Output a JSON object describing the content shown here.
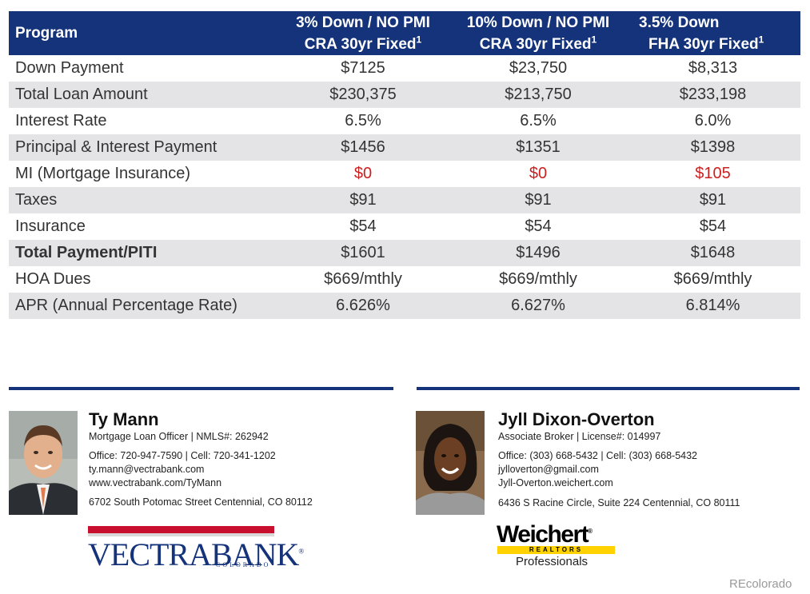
{
  "table": {
    "headers": {
      "program": "Program",
      "columns": [
        {
          "line1": "3% Down / NO PMI",
          "line2": "CRA 30yr Fixed",
          "sup": "1"
        },
        {
          "line1": "10% Down / NO PMI",
          "line2": "CRA 30yr Fixed",
          "sup": "1"
        },
        {
          "line1": "3.5% Down",
          "line2": "FHA 30yr Fixed",
          "sup": "1"
        }
      ]
    },
    "rows": [
      {
        "label": "Down Payment",
        "values": [
          "$7125",
          "$23,750",
          "$8,313"
        ]
      },
      {
        "label": "Total Loan Amount",
        "values": [
          "$230,375",
          "$213,750",
          "$233,198"
        ]
      },
      {
        "label": "Interest Rate",
        "values": [
          "6.5%",
          "6.5%",
          "6.0%"
        ]
      },
      {
        "label": "Principal & Interest Payment",
        "values": [
          "$1456",
          "$1351",
          "$1398"
        ]
      },
      {
        "label": "MI (Mortgage Insurance)",
        "values": [
          "$0",
          "$0",
          "$105"
        ]
      },
      {
        "label": "Taxes",
        "values": [
          "$91",
          "$91",
          "$91"
        ]
      },
      {
        "label": "Insurance",
        "values": [
          "$54",
          "$54",
          "$54"
        ]
      },
      {
        "label": "Total Payment/PITI",
        "values": [
          "$1601",
          "$1496",
          "$1648"
        ]
      },
      {
        "label": "HOA Dues",
        "values": [
          "$669/mthly",
          "$669/mthly",
          "$669/mthly"
        ]
      },
      {
        "label": "APR (Annual Percentage Rate)",
        "values": [
          "6.626%",
          "6.627%",
          "6.814%"
        ]
      }
    ],
    "colors": {
      "header_bg": "#14337a",
      "highlight_red": "#cc1f1f",
      "stripe": "#e4e4e6"
    }
  },
  "contacts": {
    "loan_officer": {
      "name": "Ty Mann",
      "title": "Mortgage Loan Officer | NMLS#: 262942",
      "phones": "Office: 720-947-7590 | Cell: 720-341-1202",
      "email": "ty.mann@vectrabank.com",
      "website": "www.vectrabank.com/TyMann",
      "address": "6702 South Potomac Street Centennial, CO 80112"
    },
    "broker": {
      "name": "Jyll Dixon-Overton",
      "title": "Associate Broker | License#: 014997",
      "phones": "Office: (303) 668-5432 | Cell: (303) 668-5432",
      "email": "jylloverton@gmail.com",
      "website": "Jyll-Overton.weichert.com",
      "address": "6436 S Racine Circle, Suite 224 Centennial, CO 80111"
    }
  },
  "logos": {
    "vectra": {
      "text": "VECTRABANK",
      "sub": "COLORADO",
      "mark": "®"
    },
    "weichert": {
      "text": "Weichert",
      "mark": "®",
      "band": "REALTORS",
      "sub": "Professionals"
    }
  },
  "watermark": "REcolorado"
}
